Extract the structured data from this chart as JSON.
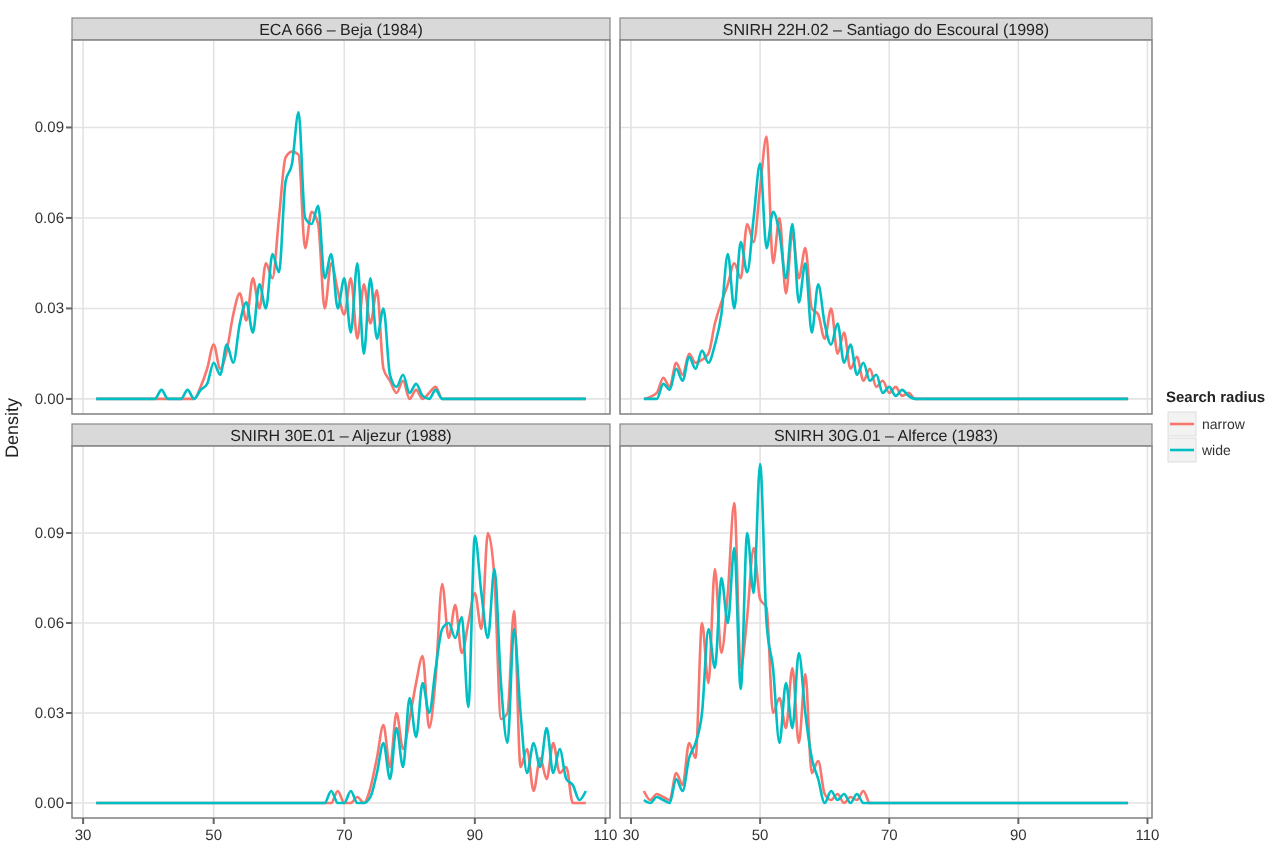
{
  "chart_data": [
    {
      "type": "line",
      "title": "ECA 666 – Beja (1984)",
      "ylabel": "Density",
      "legend": "right",
      "legend_title": "Search radius",
      "tick_labels": "y",
      "grid": true,
      "xlim": [
        28.3,
        110.7
      ],
      "ylim": [
        -0.005,
        0.119
      ],
      "xticks": [
        30,
        50,
        70,
        90,
        110
      ],
      "yticks": [
        {
          "value": 0,
          "label": "0.00"
        },
        {
          "value": 0.03,
          "label": "0.03"
        },
        {
          "value": 0.06,
          "label": "0.06"
        },
        {
          "value": 0.09,
          "label": "0.09"
        }
      ],
      "x": [
        32,
        41,
        42,
        43,
        45,
        46,
        47,
        48,
        49,
        50,
        51,
        52,
        53,
        54,
        55,
        56,
        57,
        58,
        59,
        60,
        61,
        62,
        63,
        64,
        65,
        66,
        67,
        68,
        69,
        70,
        71,
        72,
        73,
        74,
        75,
        76,
        77,
        78,
        79,
        80,
        81,
        82,
        83,
        84,
        85,
        86,
        107
      ],
      "series": [
        {
          "name": "narrow",
          "color": "#f8766d",
          "values": [
            0,
            0,
            0,
            0,
            0,
            0,
            0,
            0.004,
            0.01,
            0.018,
            0.01,
            0.016,
            0.028,
            0.035,
            0.026,
            0.04,
            0.03,
            0.045,
            0.04,
            0.06,
            0.08,
            0.082,
            0.081,
            0.05,
            0.062,
            0.058,
            0.03,
            0.045,
            0.036,
            0.028,
            0.04,
            0.02,
            0.038,
            0.025,
            0.036,
            0.01,
            0.006,
            0.002,
            0.006,
            0,
            0.003,
            0,
            0.002,
            0.004,
            0,
            0,
            0
          ]
        },
        {
          "name": "wide",
          "color": "#00bfc4",
          "values": [
            0,
            0,
            0.003,
            0,
            0,
            0.003,
            0,
            0.003,
            0.005,
            0.012,
            0.008,
            0.018,
            0.012,
            0.025,
            0.032,
            0.022,
            0.038,
            0.03,
            0.048,
            0.042,
            0.072,
            0.078,
            0.095,
            0.06,
            0.058,
            0.064,
            0.04,
            0.048,
            0.03,
            0.04,
            0.022,
            0.045,
            0.015,
            0.04,
            0.02,
            0.03,
            0.008,
            0.004,
            0.008,
            0.002,
            0.005,
            0.001,
            0,
            0.003,
            0,
            0,
            0
          ]
        }
      ]
    },
    {
      "type": "line",
      "title": "SNIRH 22H.02 – Santiago do Escoural (1998)",
      "tick_labels": false,
      "grid": true,
      "xlim": [
        28.3,
        110.7
      ],
      "ylim": [
        -0.005,
        0.119
      ],
      "xticks": [
        30,
        50,
        70,
        90,
        110
      ],
      "yticks": [
        0,
        0.03,
        0.06,
        0.09
      ],
      "x": [
        32,
        34,
        35,
        36,
        37,
        38,
        39,
        40,
        41,
        42,
        43,
        44,
        45,
        46,
        47,
        48,
        49,
        50,
        51,
        52,
        53,
        54,
        55,
        56,
        57,
        58,
        59,
        60,
        61,
        62,
        63,
        64,
        65,
        66,
        67,
        68,
        69,
        70,
        71,
        72,
        73,
        74,
        75,
        107
      ],
      "series": [
        {
          "color": "#f8766d",
          "values": [
            0,
            0.002,
            0.007,
            0.004,
            0.012,
            0.008,
            0.015,
            0.012,
            0.013,
            0.015,
            0.025,
            0.032,
            0.038,
            0.045,
            0.04,
            0.058,
            0.052,
            0.07,
            0.087,
            0.045,
            0.06,
            0.035,
            0.055,
            0.04,
            0.05,
            0.03,
            0.028,
            0.02,
            0.03,
            0.015,
            0.022,
            0.01,
            0.014,
            0.006,
            0.01,
            0.004,
            0.006,
            0.002,
            0.004,
            0.001,
            0.002,
            0,
            0,
            0
          ]
        },
        {
          "color": "#00bfc4",
          "values": [
            0,
            0,
            0.005,
            0.003,
            0.01,
            0.006,
            0.014,
            0.01,
            0.016,
            0.012,
            0.018,
            0.028,
            0.048,
            0.03,
            0.052,
            0.042,
            0.06,
            0.078,
            0.05,
            0.062,
            0.055,
            0.04,
            0.058,
            0.032,
            0.045,
            0.022,
            0.038,
            0.025,
            0.018,
            0.025,
            0.012,
            0.018,
            0.008,
            0.012,
            0.006,
            0.008,
            0.002,
            0.004,
            0.001,
            0.003,
            0.001,
            0,
            0,
            0
          ]
        }
      ]
    },
    {
      "type": "line",
      "title": "SNIRH 30E.01 – Aljezur (1988)",
      "grid": true,
      "xlim": [
        28.3,
        110.7
      ],
      "ylim": [
        -0.005,
        0.119
      ],
      "xticks": [
        30,
        50,
        70,
        90,
        110
      ],
      "yticks": [
        {
          "value": 0,
          "label": "0.00"
        },
        {
          "value": 0.03,
          "label": "0.03"
        },
        {
          "value": 0.06,
          "label": "0.06"
        },
        {
          "value": 0.09,
          "label": "0.09"
        }
      ],
      "x": [
        32,
        67,
        68,
        69,
        70,
        71,
        72,
        73,
        74,
        75,
        76,
        77,
        78,
        79,
        80,
        81,
        82,
        83,
        84,
        85,
        86,
        87,
        88,
        89,
        90,
        91,
        92,
        93,
        94,
        95,
        96,
        97,
        98,
        99,
        100,
        101,
        102,
        103,
        104,
        105,
        106,
        107
      ],
      "series": [
        {
          "color": "#f8766d",
          "values": [
            0,
            0,
            0,
            0.004,
            0,
            0,
            0.002,
            0,
            0.005,
            0.015,
            0.026,
            0.012,
            0.03,
            0.018,
            0.028,
            0.04,
            0.049,
            0.025,
            0.042,
            0.073,
            0.055,
            0.066,
            0.05,
            0.06,
            0.07,
            0.058,
            0.09,
            0.075,
            0.028,
            0.03,
            0.064,
            0.012,
            0.018,
            0.004,
            0.015,
            0.008,
            0.02,
            0.01,
            0.012,
            0,
            0,
            0
          ]
        },
        {
          "color": "#00bfc4",
          "values": [
            0,
            0,
            0.004,
            0,
            0,
            0.004,
            0,
            0,
            0.002,
            0.01,
            0.02,
            0.008,
            0.025,
            0.012,
            0.035,
            0.022,
            0.04,
            0.03,
            0.045,
            0.058,
            0.06,
            0.055,
            0.062,
            0.032,
            0.089,
            0.07,
            0.055,
            0.078,
            0.04,
            0.02,
            0.058,
            0.03,
            0.01,
            0.02,
            0.012,
            0.025,
            0.01,
            0.018,
            0.008,
            0.006,
            0.001,
            0.004
          ]
        }
      ]
    },
    {
      "type": "line",
      "title": "SNIRH 30G.01 – Alferce (1983)",
      "tick_labels": "x",
      "grid": true,
      "xlim": [
        28.3,
        110.7
      ],
      "ylim": [
        -0.005,
        0.119
      ],
      "xticks": [
        30,
        50,
        70,
        90,
        110
      ],
      "yticks": [
        0,
        0.03,
        0.06,
        0.09
      ],
      "x": [
        32,
        33,
        34,
        35,
        36,
        37,
        38,
        39,
        40,
        41,
        42,
        43,
        44,
        45,
        46,
        47,
        48,
        49,
        50,
        51,
        52,
        53,
        54,
        55,
        56,
        57,
        58,
        59,
        60,
        61,
        62,
        63,
        64,
        65,
        66,
        67,
        107
      ],
      "series": [
        {
          "color": "#f8766d",
          "values": [
            0.004,
            0.001,
            0.003,
            0.002,
            0.001,
            0.01,
            0.006,
            0.02,
            0.015,
            0.06,
            0.04,
            0.078,
            0.05,
            0.07,
            0.1,
            0.045,
            0.062,
            0.085,
            0.068,
            0.065,
            0.03,
            0.035,
            0.025,
            0.045,
            0.02,
            0.043,
            0.01,
            0.014,
            0.003,
            0.001,
            0.003,
            0,
            0.002,
            0.001,
            0.004,
            0,
            0
          ]
        },
        {
          "color": "#00bfc4",
          "values": [
            0.001,
            0,
            0.002,
            0.001,
            0,
            0.008,
            0.004,
            0.015,
            0.02,
            0.03,
            0.058,
            0.045,
            0.075,
            0.06,
            0.085,
            0.038,
            0.09,
            0.07,
            0.113,
            0.06,
            0.045,
            0.02,
            0.04,
            0.025,
            0.05,
            0.03,
            0.015,
            0.008,
            0,
            0.004,
            0.001,
            0.003,
            0,
            0.003,
            0,
            0,
            0
          ]
        }
      ]
    }
  ]
}
